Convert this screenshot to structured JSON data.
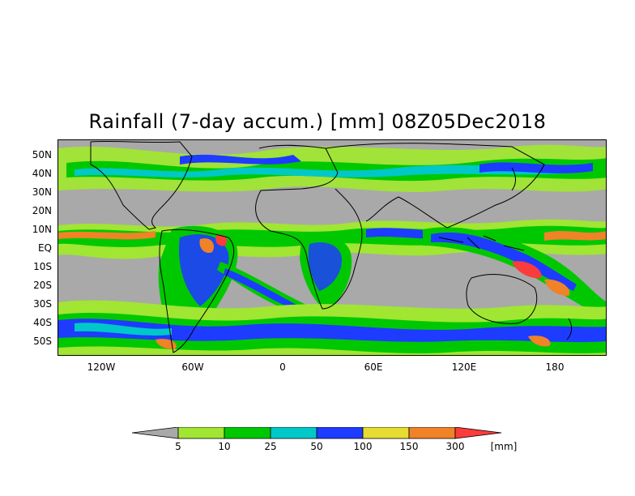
{
  "title": "Rainfall (7-day accum.) [mm] 08Z05Dec2018",
  "lat_labels": [
    "50N",
    "40N",
    "30N",
    "20N",
    "10N",
    "EQ",
    "10S",
    "20S",
    "30S",
    "40S",
    "50S"
  ],
  "lon_labels": [
    "120W",
    "60W",
    "0",
    "60E",
    "120E",
    "180"
  ],
  "legend": {
    "labels": [
      "5",
      "10",
      "25",
      "50",
      "100",
      "150",
      "300"
    ],
    "unit": "[mm]",
    "colors": [
      "#a9a9a9",
      "#a0e632",
      "#00c800",
      "#00c8c8",
      "#1e3cff",
      "#e6dc32",
      "#f08228",
      "#fa3c3c"
    ]
  }
}
